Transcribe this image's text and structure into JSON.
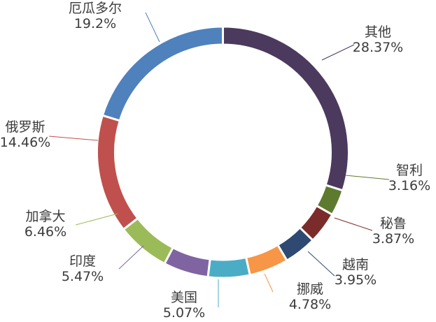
{
  "chart_data": {
    "type": "pie",
    "variant": "donut",
    "title": "",
    "legend": "none",
    "slices": [
      {
        "label": "其他",
        "value": 28.37,
        "value_label": "28.37%",
        "color": "#4b3a5e"
      },
      {
        "label": "智利",
        "value": 3.16,
        "value_label": "3.16%",
        "color": "#5e7a2e"
      },
      {
        "label": "秘鲁",
        "value": 3.87,
        "value_label": "3.87%",
        "color": "#7b2c2a"
      },
      {
        "label": "越南",
        "value": 3.95,
        "value_label": "3.95%",
        "color": "#2f4a72"
      },
      {
        "label": "挪威",
        "value": 4.78,
        "value_label": "4.78%",
        "color": "#f79646"
      },
      {
        "label": "美国",
        "value": 5.07,
        "value_label": "5.07%",
        "color": "#4bacc6"
      },
      {
        "label": "印度",
        "value": 5.47,
        "value_label": "5.47%",
        "color": "#8064a2"
      },
      {
        "label": "加拿大",
        "value": 6.46,
        "value_label": "6.46%",
        "color": "#9bbb59"
      },
      {
        "label": "俄罗斯",
        "value": 14.46,
        "value_label": "14.46%",
        "color": "#c0504d"
      },
      {
        "label": "厄瓜多尔",
        "value": 19.2,
        "value_label": "19.2%",
        "color": "#4f81bd"
      }
    ]
  }
}
